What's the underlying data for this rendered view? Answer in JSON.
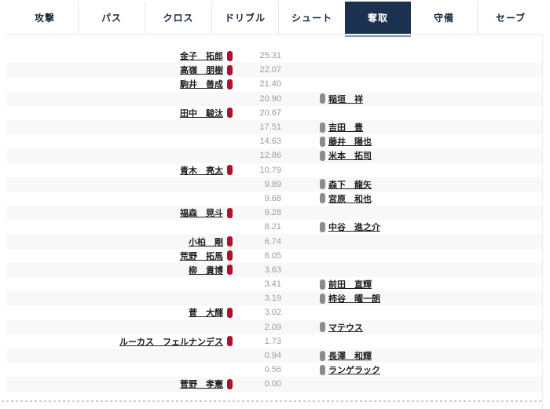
{
  "tab_bar": {
    "active_index": 5,
    "tabs": [
      {
        "id": "attack",
        "label": "攻撃"
      },
      {
        "id": "pass",
        "label": "パス"
      },
      {
        "id": "cross",
        "label": "クロス"
      },
      {
        "id": "dribble",
        "label": "ドリブル"
      },
      {
        "id": "shoot",
        "label": "シュート"
      },
      {
        "id": "steal",
        "label": "奪取"
      },
      {
        "id": "defense",
        "label": "守備"
      },
      {
        "id": "save",
        "label": "セーブ"
      }
    ]
  },
  "ranking": {
    "metric_label": "奪取",
    "rows": [
      {
        "side": "home",
        "name": "金子　拓郎",
        "value": "25.31"
      },
      {
        "side": "home",
        "name": "高嶺　朋樹",
        "value": "22.07"
      },
      {
        "side": "home",
        "name": "駒井　善成",
        "value": "21.40"
      },
      {
        "side": "away",
        "name": "稲垣　祥",
        "value": "20.90"
      },
      {
        "side": "home",
        "name": "田中　駿汰",
        "value": "20.67"
      },
      {
        "side": "away",
        "name": "吉田　豊",
        "value": "17.51"
      },
      {
        "side": "away",
        "name": "藤井　陽也",
        "value": "14.63"
      },
      {
        "side": "away",
        "name": "米本　拓司",
        "value": "12.86"
      },
      {
        "side": "home",
        "name": "青木　亮太",
        "value": "10.79"
      },
      {
        "side": "away",
        "name": "森下　龍矢",
        "value": "9.89"
      },
      {
        "side": "away",
        "name": "宮原　和也",
        "value": "9.68"
      },
      {
        "side": "home",
        "name": "福森　晃斗",
        "value": "9.28"
      },
      {
        "side": "away",
        "name": "中谷　進之介",
        "value": "8.21"
      },
      {
        "side": "home",
        "name": "小柏　剛",
        "value": "6.74"
      },
      {
        "side": "home",
        "name": "荒野　拓馬",
        "value": "6.05"
      },
      {
        "side": "home",
        "name": "柳　貴博",
        "value": "3.63"
      },
      {
        "side": "away",
        "name": "前田　直輝",
        "value": "3.41"
      },
      {
        "side": "away",
        "name": "柿谷　曜一朗",
        "value": "3.19"
      },
      {
        "side": "home",
        "name": "菅　大輝",
        "value": "3.02"
      },
      {
        "side": "away",
        "name": "マテウス",
        "value": "2.09"
      },
      {
        "side": "home",
        "name": "ルーカス　フェルナンデス",
        "value": "1.73"
      },
      {
        "side": "away",
        "name": "長澤　和輝",
        "value": "0.94"
      },
      {
        "side": "away",
        "name": "ランゲラック",
        "value": "0.56"
      },
      {
        "side": "home",
        "name": "菅野　孝憲",
        "value": "0.00"
      }
    ]
  },
  "colors": {
    "home_bar": "#b30e2a",
    "away_bar": "#8c8c8c",
    "active_tab_bg": "#1b3150",
    "active_tab_indicator": "#8a99ad",
    "row_alt_bg": "#f8f8f8"
  }
}
